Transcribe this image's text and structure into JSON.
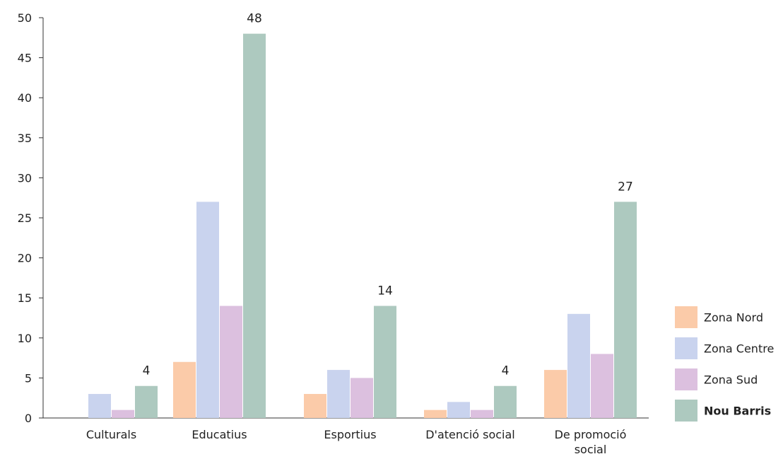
{
  "chart_data": {
    "type": "bar",
    "categories": [
      [
        "Culturals"
      ],
      [
        "Educatius"
      ],
      [
        "Esportius"
      ],
      [
        "D'atenció social"
      ],
      [
        "De promoció",
        "social"
      ]
    ],
    "series": [
      {
        "name": "Zona Nord",
        "color": "#fbcba9",
        "values": [
          0,
          7,
          3,
          1,
          6
        ]
      },
      {
        "name": "Zona Centre",
        "color": "#c9d3ee",
        "values": [
          3,
          27,
          6,
          2,
          13
        ]
      },
      {
        "name": "Zona Sud",
        "color": "#dcc0df",
        "values": [
          1,
          14,
          5,
          1,
          8
        ]
      },
      {
        "name": "Nou Barris",
        "color": "#adc9bf",
        "values": [
          4,
          48,
          14,
          4,
          27
        ],
        "bold_legend": true
      }
    ],
    "data_labels": {
      "series": "Nou Barris",
      "values": [
        "4",
        "48",
        "14",
        "4",
        "27"
      ]
    },
    "ylim": [
      0,
      50
    ],
    "yticks": [
      0,
      5,
      10,
      15,
      20,
      25,
      30,
      35,
      40,
      45,
      50
    ],
    "legend_position": "right",
    "grid": false,
    "title": "",
    "xlabel": "",
    "ylabel": ""
  }
}
